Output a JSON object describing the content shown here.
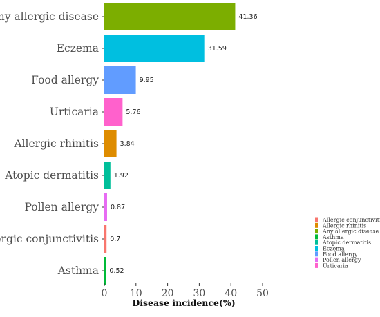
{
  "chart_data": {
    "type": "bar",
    "orientation": "horizontal",
    "title": "",
    "xlabel": "Disease incidence(%)",
    "ylabel": "",
    "xlim": [
      0,
      50
    ],
    "xticks": [
      "0",
      "10",
      "20",
      "30",
      "40",
      "50"
    ],
    "grid": false,
    "legend_position": "bottom-right",
    "bars": [
      {
        "category": "Any allergic disease",
        "value": 41.36,
        "label": "41.36",
        "color": "#7CAE00"
      },
      {
        "category": "Eczema",
        "value": 31.59,
        "label": "31.59",
        "color": "#00BFE0"
      },
      {
        "category": "Food allergy",
        "value": 9.95,
        "label": "9.95",
        "color": "#619CFF"
      },
      {
        "category": "Urticaria",
        "value": 5.76,
        "label": "5.76",
        "color": "#FF61CC"
      },
      {
        "category": "Allergic rhinitis",
        "value": 3.84,
        "label": "3.84",
        "color": "#DE8C00"
      },
      {
        "category": "Atopic dermatitis",
        "value": 1.92,
        "label": "1.92",
        "color": "#00BF9A"
      },
      {
        "category": "Pollen allergy",
        "value": 0.87,
        "label": "0.87",
        "color": "#E76BF3"
      },
      {
        "category": "Allergic conjunctivitis",
        "value": 0.7,
        "label": "0.7",
        "color": "#F8766D"
      },
      {
        "category": "Asthma",
        "value": 0.52,
        "label": "0.52",
        "color": "#00BA38"
      }
    ],
    "legend": [
      {
        "label": "Allergic conjunctivitis",
        "color": "#F8766D"
      },
      {
        "label": "Allergic rhinitis",
        "color": "#DE8C00"
      },
      {
        "label": "Any allergic disease",
        "color": "#7CAE00"
      },
      {
        "label": "Asthma",
        "color": "#00BA38"
      },
      {
        "label": "Atopic dermatitis",
        "color": "#00BF9A"
      },
      {
        "label": "Eczema",
        "color": "#00BFE0"
      },
      {
        "label": "Food allergy",
        "color": "#619CFF"
      },
      {
        "label": "Pollen allergy",
        "color": "#E76BF3"
      },
      {
        "label": "Urticaria",
        "color": "#FF61CC"
      }
    ]
  }
}
